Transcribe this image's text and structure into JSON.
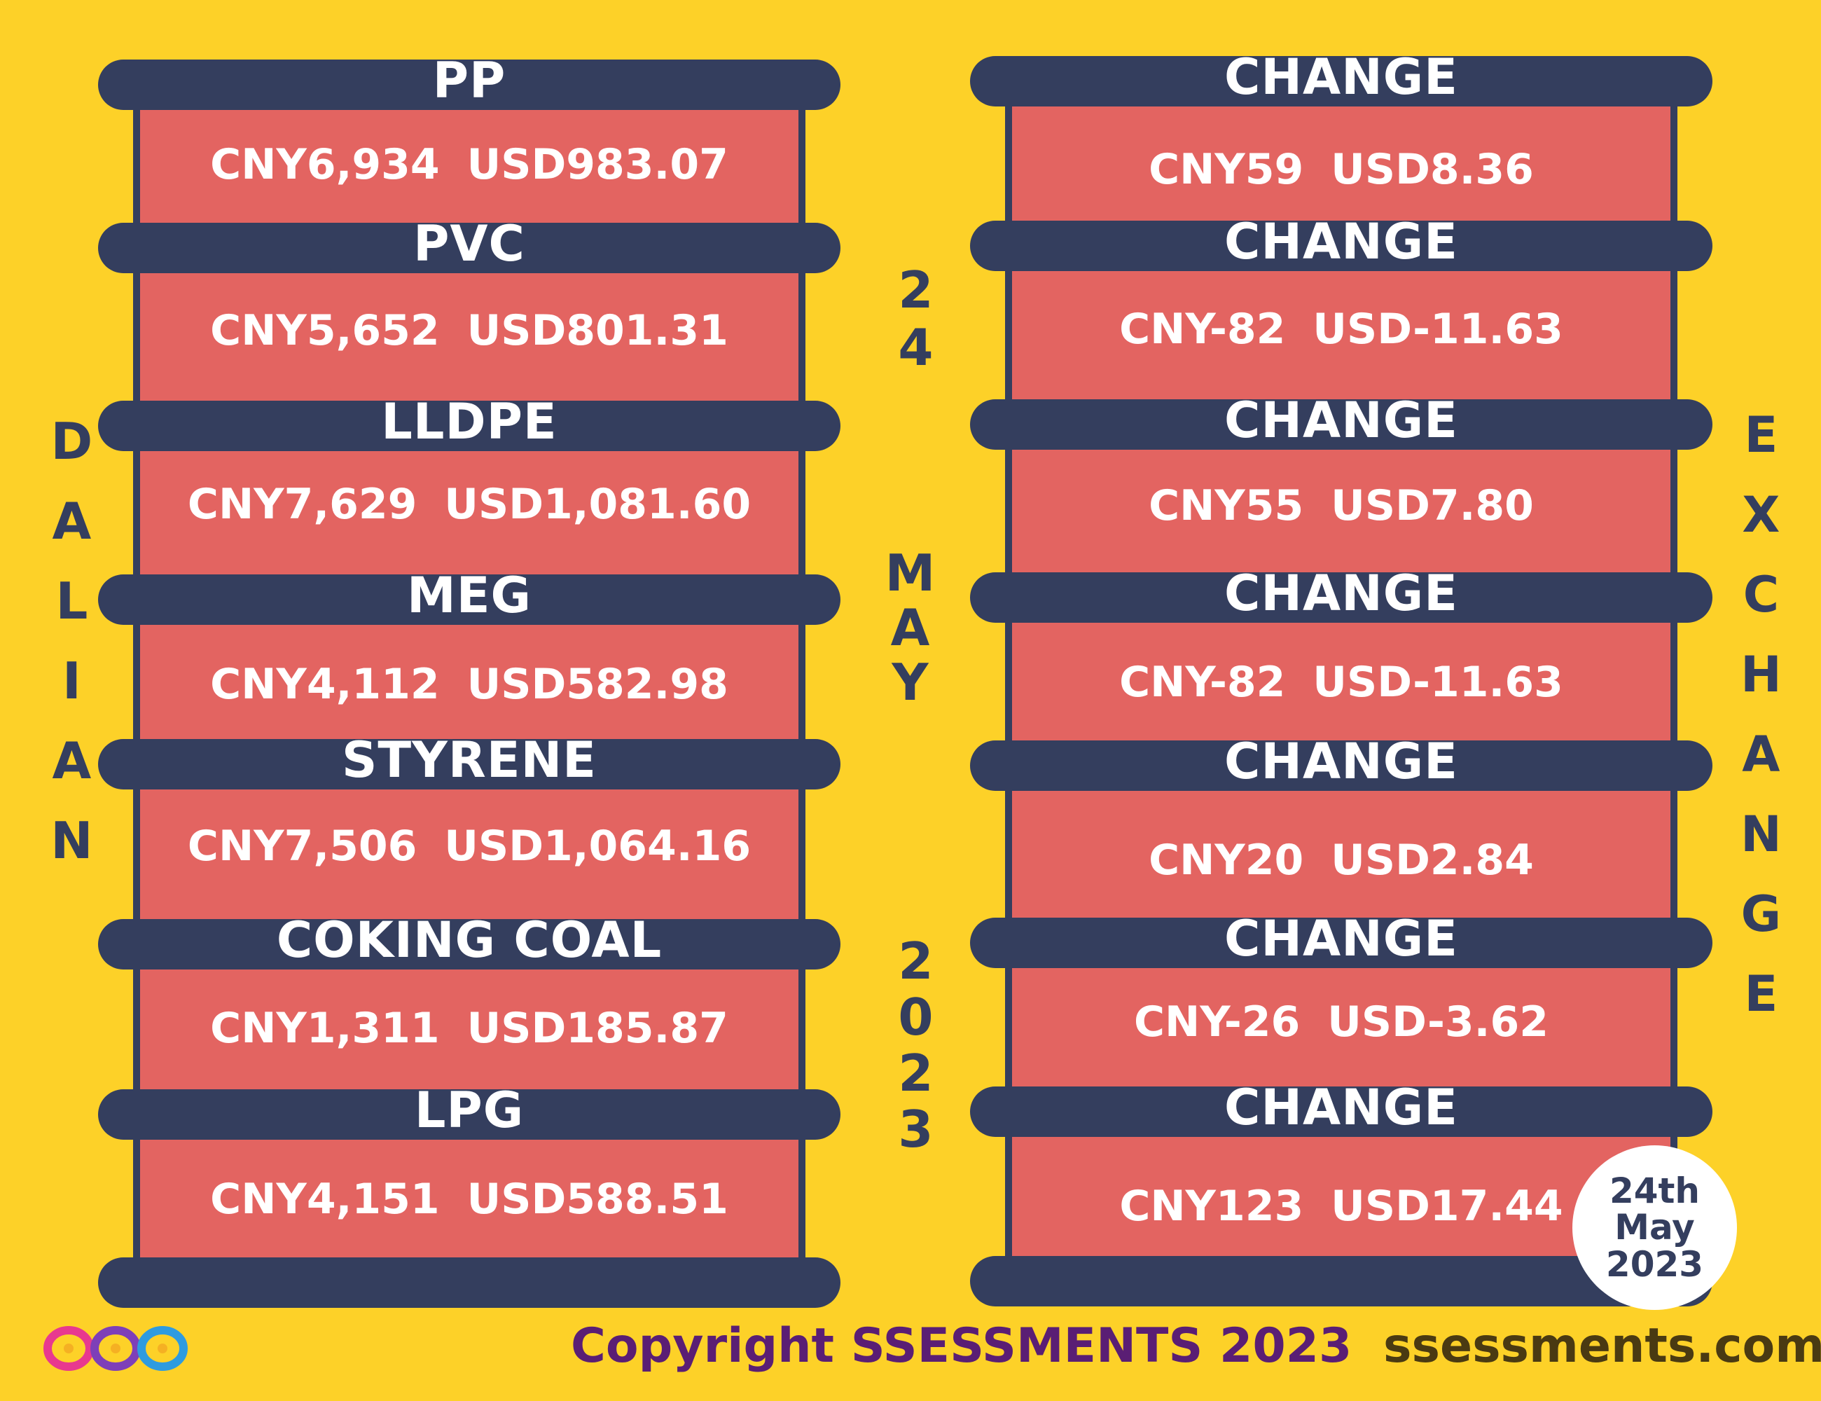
{
  "left_title": "DALIAN",
  "right_title": "EXCHANGE",
  "center_date_top": "24",
  "center_date_month": "MAY",
  "center_date_year": "2023",
  "commodities": [
    {
      "name": "PP",
      "price": "CNY6,934  USD983.07",
      "change_label": "CHANGE",
      "change": "CNY59  USD8.36"
    },
    {
      "name": "PVC",
      "price": "CNY5,652  USD801.31",
      "change_label": "CHANGE",
      "change": "CNY-82  USD-11.63"
    },
    {
      "name": "LLDPE",
      "price": "CNY7,629  USD1,081.60",
      "change_label": "CHANGE",
      "change": "CNY55  USD7.80"
    },
    {
      "name": "MEG",
      "price": "CNY4,112  USD582.98",
      "change_label": "CHANGE",
      "change": "CNY-82  USD-11.63"
    },
    {
      "name": "STYRENE",
      "price": "CNY7,506  USD1,064.16",
      "change_label": "CHANGE",
      "change": "CNY20  USD2.84"
    },
    {
      "name": "COKING COAL",
      "price": "CNY1,311  USD185.87",
      "change_label": "CHANGE",
      "change": "CNY-26  USD-3.62"
    },
    {
      "name": "LPG",
      "price": "CNY4,151  USD588.51",
      "change_label": "CHANGE",
      "change": "CNY123  USD17.44"
    }
  ],
  "badge": {
    "line1": "24th",
    "line2": "May",
    "line3": "2023"
  },
  "footer": {
    "copyright": "Copyright SSESSMENTS 2023",
    "website": "ssessments.com"
  },
  "colors": {
    "background": "#FDD128",
    "bar": "#343E5E",
    "panel": "#E36461",
    "copyright": "#5A1E74"
  }
}
